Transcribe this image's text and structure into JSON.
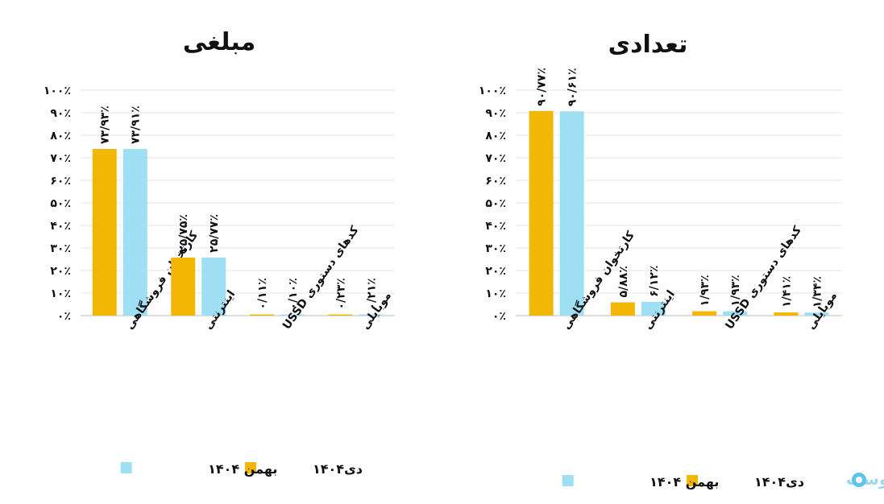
{
  "colors": {
    "dey": "#f2b705",
    "bahman": "#9fdff4",
    "grid": "#e6e6e6",
    "axis": "#bdbdbd"
  },
  "brand": {
    "name": "پوست",
    "icon": "pay-logo-icon"
  },
  "chart_data": [
    {
      "id": "amount",
      "type": "bar",
      "title": "مبلغی",
      "ylim": [
        0,
        100
      ],
      "yticks": [
        0,
        10,
        20,
        30,
        40,
        50,
        60,
        70,
        80,
        90,
        100
      ],
      "ytick_labels": [
        "۰٪",
        "۱۰٪",
        "۲۰٪",
        "۳۰٪",
        "۴۰٪",
        "۵۰٪",
        "۶۰٪",
        "۷۰٪",
        "۸۰٪",
        "۹۰٪",
        "۱۰۰٪"
      ],
      "grid": true,
      "legend": "bottom",
      "categories": [
        "کارتخوان فروشگاهی",
        "اینترنتی",
        "کدهای دستوری USSD",
        "موبایلی"
      ],
      "series": [
        {
          "name": "دی۱۴۰۴",
          "color": "#f2b705",
          "values": [
            73.93,
            25.75,
            0.11,
            0.23
          ],
          "labels": [
            "۷۳/۹۳٪",
            "۲۵/۷۵٪",
            "۰/۱۱٪",
            "۰/۲۳٪"
          ]
        },
        {
          "name": "بهمن ۱۴۰۴",
          "color": "#9fdff4",
          "values": [
            73.91,
            25.77,
            0.1,
            0.21
          ],
          "labels": [
            "۷۳/۹۱٪",
            "۲۵/۷۷٪",
            "۰/۱۰٪",
            "۰/۲۱٪"
          ]
        }
      ]
    },
    {
      "id": "count",
      "type": "bar",
      "title": "تعدادی",
      "ylim": [
        0,
        100
      ],
      "yticks": [
        0,
        10,
        20,
        30,
        40,
        50,
        60,
        70,
        80,
        90,
        100
      ],
      "ytick_labels": [
        "۰٪",
        "۱۰٪",
        "۲۰٪",
        "۳۰٪",
        "۴۰٪",
        "۵۰٪",
        "۶۰٪",
        "۷۰٪",
        "۸۰٪",
        "۹۰٪",
        "۱۰۰٪"
      ],
      "grid": true,
      "legend": "bottom",
      "categories": [
        "کارتخوان فروشگاهی",
        "اینترنتی",
        "کدهای دستوری USSD",
        "موبایلی"
      ],
      "series": [
        {
          "name": "دی۱۴۰۴",
          "color": "#f2b705",
          "values": [
            90.77,
            5.88,
            1.93,
            1.41
          ],
          "labels": [
            "۹۰/۷۷٪",
            "۵/۸۸٪",
            "۱/۹۳٪",
            "۱/۴۱٪"
          ]
        },
        {
          "name": "بهمن ۱۴۰۴",
          "color": "#9fdff4",
          "values": [
            90.61,
            6.12,
            1.93,
            1.34
          ],
          "labels": [
            "۹۰/۶۱٪",
            "۶/۱۲٪",
            "۱/۹۳٪",
            "۱/۳۴٪"
          ]
        }
      ]
    }
  ]
}
